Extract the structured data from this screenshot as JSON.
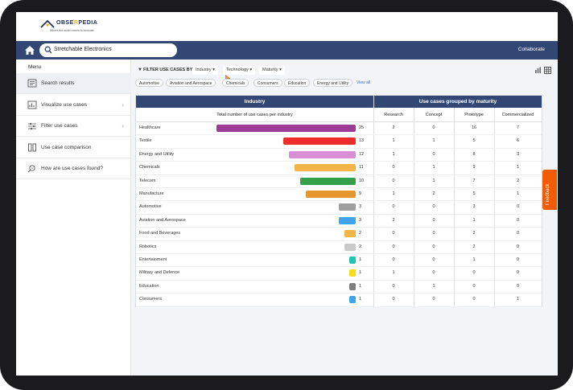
{
  "brand": {
    "name_prefix": "OBSE",
    "name_accent": "R",
    "name_suffix": "PEDIA",
    "tagline": "Where the world comes to innovate"
  },
  "navbar": {
    "search_value": "Stretchable Electronics",
    "collaborate": "Collaborate",
    "home_icon": "home-icon",
    "search_icon": "search-icon"
  },
  "sidebar": {
    "title": "Menu",
    "items": [
      {
        "label": "Search results",
        "icon": "list-icon",
        "active": true,
        "chevron": false
      },
      {
        "label": "Visualize use cases",
        "icon": "chart-icon",
        "active": false,
        "chevron": true
      },
      {
        "label": "Filter use cases",
        "icon": "sliders-icon",
        "active": false,
        "chevron": true
      },
      {
        "label": "Use case comparison",
        "icon": "columns-icon",
        "active": false,
        "chevron": false
      },
      {
        "label": "How are use cases found?",
        "icon": "magnifier-icon",
        "active": false,
        "chevron": false
      }
    ]
  },
  "filter": {
    "label": "FILTER USE CASES BY",
    "dropdowns": [
      "Industry ▾",
      "Technology ▾",
      "Maturity ▾"
    ],
    "chips": [
      "Automotive",
      "Aviation and Aerospace",
      "Chemicals",
      "Consumers",
      "Education",
      "Energy and Utility"
    ],
    "view_all": "View all"
  },
  "table": {
    "industry_header": "Industry",
    "maturity_header": "Use cases grouped by maturity",
    "total_label": "Total number of use cases per industry",
    "columns": [
      "Research",
      "Concept",
      "Prototype",
      "Commercialized"
    ],
    "max_total": 25,
    "rows": [
      {
        "name": "Healthcare",
        "total": "25",
        "color": "#9b3b96",
        "values": [
          "2",
          "0",
          "16",
          "7"
        ]
      },
      {
        "name": "Textile",
        "total": "13",
        "color": "#ee2c2c",
        "values": [
          "1",
          "1",
          "5",
          "6"
        ]
      },
      {
        "name": "Energy and Utility",
        "total": "12",
        "color": "#d98fd6",
        "values": [
          "1",
          "0",
          "8",
          "3"
        ]
      },
      {
        "name": "Chemicals",
        "total": "11",
        "color": "#f4b548",
        "values": [
          "0",
          "1",
          "9",
          "1"
        ]
      },
      {
        "name": "Telecom",
        "total": "10",
        "color": "#35a049",
        "values": [
          "0",
          "1",
          "7",
          "2"
        ]
      },
      {
        "name": "Manufacture",
        "total": "9",
        "color": "#e5972d",
        "values": [
          "1",
          "2",
          "5",
          "1"
        ]
      },
      {
        "name": "Automotive",
        "total": "3",
        "color": "#9e9e9e",
        "values": [
          "0",
          "0",
          "3",
          "0"
        ]
      },
      {
        "name": "Aviation and Aerospace",
        "total": "3",
        "color": "#3fa4ec",
        "values": [
          "2",
          "0",
          "1",
          "0"
        ]
      },
      {
        "name": "Food and Beverages",
        "total": "2",
        "color": "#f4b548",
        "values": [
          "0",
          "0",
          "2",
          "0"
        ]
      },
      {
        "name": "Robotics",
        "total": "2",
        "color": "#c9c9c9",
        "values": [
          "0",
          "0",
          "2",
          "0"
        ]
      },
      {
        "name": "Entertainment",
        "total": "1",
        "color": "#22c4b4",
        "values": [
          "0",
          "0",
          "1",
          "0"
        ]
      },
      {
        "name": "Military and Defence",
        "total": "1",
        "color": "#f7dc17",
        "values": [
          "1",
          "0",
          "0",
          "0"
        ]
      },
      {
        "name": "Education",
        "total": "1",
        "color": "#7e7e7e",
        "values": [
          "0",
          "1",
          "0",
          "0"
        ]
      },
      {
        "name": "Consumers",
        "total": "1",
        "color": "#3fa4ec",
        "values": [
          "0",
          "0",
          "0",
          "1"
        ]
      }
    ]
  },
  "feedback": "Feedback"
}
